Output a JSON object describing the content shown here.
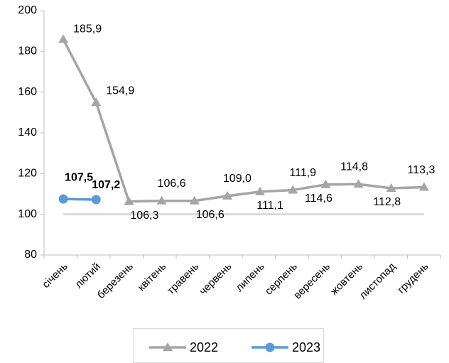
{
  "chart_data": {
    "type": "line",
    "categories": [
      "січень",
      "лютий",
      "березень",
      "квітень",
      "травень",
      "червень",
      "липень",
      "серпень",
      "вересень",
      "жовтень",
      "листопад",
      "грудень"
    ],
    "series": [
      {
        "name": "2022",
        "color": "#a5a5a5",
        "marker": "triangle",
        "values": [
          185.9,
          154.9,
          106.3,
          106.6,
          106.6,
          109.0,
          111.1,
          111.9,
          114.6,
          114.8,
          112.8,
          113.3
        ],
        "value_labels": [
          "185,9",
          "154,9",
          "106,3",
          "106,6",
          "106,6",
          "109,0",
          "111,1",
          "111,9",
          "114,6",
          "114,8",
          "112,8",
          "113,3"
        ]
      },
      {
        "name": "2023",
        "color": "#5b9bd5",
        "marker": "circle",
        "values": [
          107.5,
          107.2,
          null,
          null,
          null,
          null,
          null,
          null,
          null,
          null,
          null,
          null
        ],
        "value_labels": [
          "107,5",
          "107,2",
          null,
          null,
          null,
          null,
          null,
          null,
          null,
          null,
          null,
          null
        ]
      }
    ],
    "baseline": 100,
    "baseline_color": "#d9d9d9",
    "ylim": [
      80,
      200
    ],
    "yticks": [
      80,
      100,
      120,
      140,
      160,
      180,
      200
    ],
    "grid": false,
    "legend": "bottom"
  }
}
